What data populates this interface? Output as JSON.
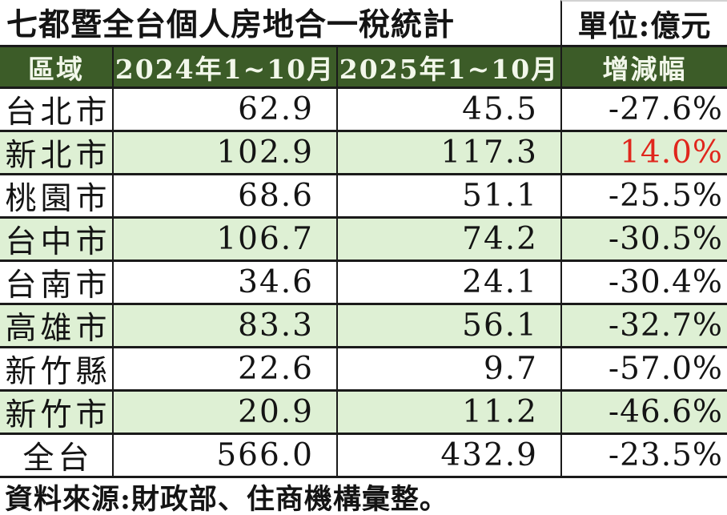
{
  "title": {
    "text": "七都暨全台個人房地合一稅統計",
    "unit_label": "單位:億元"
  },
  "table": {
    "headers": [
      "區域",
      "2024年1~10月",
      "2025年1~10月",
      "增減幅"
    ],
    "rows": [
      {
        "region": "台北市",
        "y2024": "62.9",
        "y2025": "45.5",
        "change": "-27.6%"
      },
      {
        "region": "新北市",
        "y2024": "102.9",
        "y2025": "117.3",
        "change": "14.0%"
      },
      {
        "region": "桃園市",
        "y2024": "68.6",
        "y2025": "51.1",
        "change": "-25.5%"
      },
      {
        "region": "台中市",
        "y2024": "106.7",
        "y2025": "74.2",
        "change": "-30.5%"
      },
      {
        "region": "台南市",
        "y2024": "34.6",
        "y2025": "24.1",
        "change": "-30.4%"
      },
      {
        "region": "高雄市",
        "y2024": "83.3",
        "y2025": "56.1",
        "change": "-32.7%"
      },
      {
        "region": "新竹縣",
        "y2024": "22.6",
        "y2025": "9.7",
        "change": "-57.0%"
      },
      {
        "region": "新竹市",
        "y2024": "20.9",
        "y2025": "11.2",
        "change": "-46.6%"
      },
      {
        "region": "全台",
        "y2024": "566.0",
        "y2025": "432.9",
        "change": "-23.5%"
      }
    ]
  },
  "footer": {
    "source": "資料來源:財政部、住商機構彙整。"
  },
  "colors": {
    "header-bg": "#3c5c28",
    "header-text": "#f2f7ea",
    "stripe-bg": "#def0d4",
    "positive": "#e0261c",
    "text": "#141414",
    "border": "#1a1a1a"
  },
  "chart_data": {
    "type": "table",
    "title": "七都暨全台個人房地合一稅統計",
    "unit": "億元",
    "columns": [
      "區域",
      "2024年1~10月",
      "2025年1~10月",
      "增減幅"
    ],
    "rows": [
      [
        "台北市",
        62.9,
        45.5,
        "-27.6%"
      ],
      [
        "新北市",
        102.9,
        117.3,
        "14.0%"
      ],
      [
        "桃園市",
        68.6,
        51.1,
        "-25.5%"
      ],
      [
        "台中市",
        106.7,
        74.2,
        "-30.5%"
      ],
      [
        "台南市",
        34.6,
        24.1,
        "-30.4%"
      ],
      [
        "高雄市",
        83.3,
        56.1,
        "-32.7%"
      ],
      [
        "新竹縣",
        22.6,
        9.7,
        "-57.0%"
      ],
      [
        "新竹市",
        20.9,
        11.2,
        "-46.6%"
      ],
      [
        "全台",
        566.0,
        432.9,
        "-23.5%"
      ]
    ],
    "highlight": {
      "row": "新北市",
      "column": "增減幅",
      "reason": "only positive change, shown in red"
    },
    "source": "資料來源:財政部、住商機構彙整。"
  }
}
